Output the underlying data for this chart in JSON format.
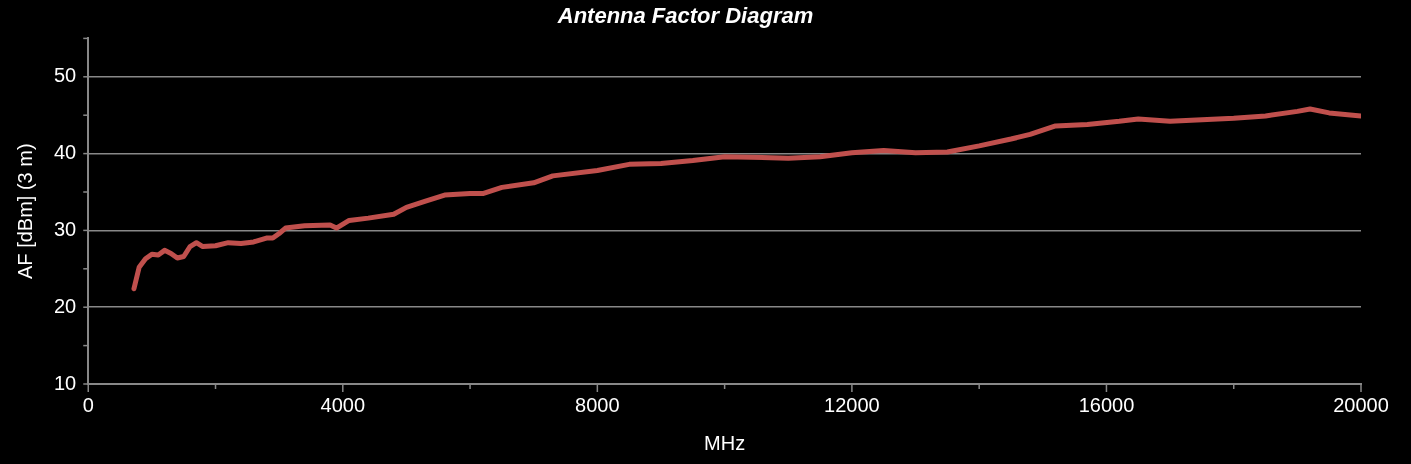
{
  "chart_data": {
    "type": "line",
    "title": "Antenna Factor Diagram",
    "xlabel": "MHz",
    "ylabel": "AF [dBm] (3 m)",
    "x": [
      718,
      800,
      900,
      1000,
      1100,
      1200,
      1300,
      1400,
      1500,
      1600,
      1700,
      1800,
      2000,
      2200,
      2400,
      2600,
      2800,
      2900,
      3000,
      3100,
      3400,
      3800,
      3900,
      4100,
      4400,
      4800,
      5000,
      5300,
      5600,
      6000,
      6200,
      6500,
      7000,
      7300,
      8000,
      8500,
      9000,
      9500,
      10000,
      11000,
      11500,
      12000,
      12500,
      13000,
      13500,
      14000,
      14500,
      14800,
      15200,
      15700,
      16200,
      16500,
      17000,
      17500,
      18000,
      18500,
      19000,
      19200,
      19500,
      20000
    ],
    "series": [
      {
        "color": "#c0504d",
        "values": [
          22.4,
          25.2,
          26.3,
          26.9,
          26.8,
          27.4,
          27.0,
          26.4,
          26.6,
          27.9,
          28.4,
          27.9,
          28.0,
          28.4,
          28.3,
          28.5,
          29.0,
          29.0,
          29.6,
          30.3,
          30.6,
          30.7,
          30.3,
          31.3,
          31.6,
          32.1,
          33.0,
          33.8,
          34.6,
          34.8,
          34.8,
          35.6,
          36.2,
          37.1,
          37.8,
          38.6,
          38.7,
          39.1,
          39.6,
          39.4,
          39.6,
          40.1,
          40.4,
          40.1,
          40.2,
          41.0,
          41.9,
          42.5,
          43.6,
          43.8,
          44.2,
          44.5,
          44.2,
          44.4,
          44.6,
          44.9,
          45.5,
          45.8,
          45.3,
          44.9
        ]
      }
    ],
    "xlim": [
      0,
      20000
    ],
    "xticks": [
      0,
      {
        "value": 2000,
        "label": null
      },
      4000,
      {
        "value": 6000,
        "label": null
      },
      8000,
      {
        "value": 10000,
        "label": null
      },
      12000,
      {
        "value": 14000,
        "label": null
      },
      16000,
      {
        "value": 18000,
        "label": null
      },
      20000
    ],
    "ylim": [
      10,
      55
    ],
    "yticks": [
      10,
      {
        "value": 15,
        "label": null
      },
      20,
      {
        "value": 25,
        "label": null
      },
      30,
      {
        "value": 35,
        "label": null
      },
      40,
      {
        "value": 45,
        "label": null
      },
      50,
      {
        "value": 55,
        "label": null
      }
    ],
    "grid": "y",
    "marker": "none",
    "line_style": "solid",
    "legend": false
  }
}
